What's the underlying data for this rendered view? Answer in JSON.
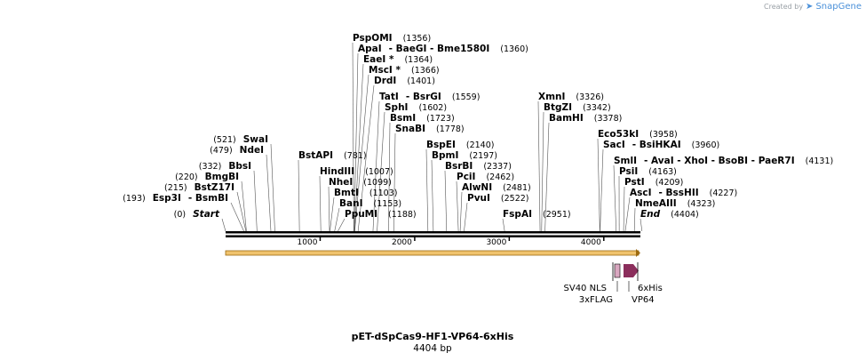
{
  "credit": {
    "prefix": "Created by",
    "brand": "SnapGene"
  },
  "map": {
    "name": "pET-dSpCas9-HF1-VP64-6xHis",
    "length_label": "4404 bp",
    "length_bp": 4404,
    "ruler_ticks": [
      "1000",
      "2000",
      "3000",
      "4000"
    ],
    "colors": {
      "orf": "#f0c36d",
      "orf_outline": "#9c6a10",
      "feature": "#8b2e5c",
      "feature_light": "#d9a7c0",
      "line": "#000000"
    }
  },
  "sites": [
    {
      "id": "start",
      "left": "(0)",
      "name": "Start",
      "right": "",
      "italic": true,
      "bp": 0
    },
    {
      "id": "esp3i",
      "left": "(193)",
      "name": "Esp3I",
      "right": "- BsmBI",
      "bp": 193
    },
    {
      "id": "bstz17i",
      "left": "(215)",
      "name": "BstZ17I",
      "right": "",
      "bp": 215
    },
    {
      "id": "bmgbi",
      "left": "(220)",
      "name": "BmgBI",
      "right": "",
      "bp": 220
    },
    {
      "id": "bbsi",
      "left": "(332)",
      "name": "BbsI",
      "right": "",
      "bp": 332
    },
    {
      "id": "ndei",
      "left": "(479)",
      "name": "NdeI",
      "right": "",
      "bp": 479
    },
    {
      "id": "swai",
      "left": "(521)",
      "name": "SwaI",
      "right": "",
      "bp": 521
    },
    {
      "id": "bstapi",
      "name": "BstAPI",
      "right": "(781)",
      "bp": 781
    },
    {
      "id": "hindiii",
      "name": "HindIII",
      "right": "(1007)",
      "bp": 1007
    },
    {
      "id": "nhei",
      "name": "NheI",
      "right": "(1099)",
      "bp": 1099
    },
    {
      "id": "bmti",
      "name": "BmtI",
      "right": "(1103)",
      "bp": 1103
    },
    {
      "id": "bani",
      "name": "BanI",
      "right": "(1153)",
      "bp": 1153
    },
    {
      "id": "ppumi",
      "name": "PpuMI",
      "right": "(1188)",
      "bp": 1188
    },
    {
      "id": "pspomi",
      "name": "PspOMI",
      "right": "(1356)",
      "bp": 1356
    },
    {
      "id": "apai",
      "name": "ApaI",
      "extra": "- BaeGI - Bme1580I",
      "right": "(1360)",
      "bp": 1360
    },
    {
      "id": "eaei",
      "name": "EaeI *",
      "right": "(1364)",
      "bp": 1364
    },
    {
      "id": "msci",
      "name": "MscI *",
      "right": "(1366)",
      "bp": 1366
    },
    {
      "id": "drdi",
      "name": "DrdI",
      "right": "(1401)",
      "bp": 1401
    },
    {
      "id": "tati",
      "name": "TatI",
      "extra": "- BsrGI",
      "right": "(1559)",
      "bp": 1559
    },
    {
      "id": "sphi",
      "name": "SphI",
      "right": "(1602)",
      "bp": 1602
    },
    {
      "id": "bsmi",
      "name": "BsmI",
      "right": "(1723)",
      "bp": 1723
    },
    {
      "id": "snabi",
      "name": "SnaBI",
      "right": "(1778)",
      "bp": 1778
    },
    {
      "id": "bspei",
      "name": "BspEI",
      "right": "(2140)",
      "bp": 2140
    },
    {
      "id": "bpmi",
      "name": "BpmI",
      "right": "(2197)",
      "bp": 2197
    },
    {
      "id": "bsrbi",
      "name": "BsrBI",
      "right": "(2337)",
      "bp": 2337
    },
    {
      "id": "pcii",
      "name": "PciI",
      "right": "(2462)",
      "bp": 2462
    },
    {
      "id": "alwni",
      "name": "AlwNI",
      "right": "(2481)",
      "bp": 2481
    },
    {
      "id": "pvui",
      "name": "PvuI",
      "right": "(2522)",
      "bp": 2522
    },
    {
      "id": "fspai",
      "name": "FspAI",
      "right": "(2951)",
      "bp": 2951
    },
    {
      "id": "xmni",
      "name": "XmnI",
      "right": "(3326)",
      "bp": 3326
    },
    {
      "id": "btgzi",
      "name": "BtgZI",
      "right": "(3342)",
      "bp": 3342
    },
    {
      "id": "bamhi",
      "name": "BamHI",
      "right": "(3378)",
      "bp": 3378
    },
    {
      "id": "eco53ki",
      "name": "Eco53kI",
      "right": "(3958)",
      "bp": 3958
    },
    {
      "id": "saci",
      "name": "SacI",
      "extra": "- BsiHKAI",
      "right": "(3960)",
      "bp": 3960
    },
    {
      "id": "smli",
      "name": "SmlI",
      "extra": "- AvaI - XhoI - BsoBI - PaeR7I",
      "right": "(4131)",
      "bp": 4131
    },
    {
      "id": "psii",
      "name": "PsiI",
      "right": "(4163)",
      "bp": 4163
    },
    {
      "id": "psti",
      "name": "PstI",
      "right": "(4209)",
      "bp": 4209
    },
    {
      "id": "asci",
      "name": "AscI",
      "extra": "- BssHII",
      "right": "(4227)",
      "bp": 4227
    },
    {
      "id": "nmeaiii",
      "name": "NmeAIII",
      "right": "(4323)",
      "bp": 4323
    },
    {
      "id": "end",
      "name": "End",
      "right": "(4404)",
      "italic": true,
      "bp": 4404
    }
  ],
  "features": [
    {
      "id": "sv40nls",
      "label": "SV40 NLS"
    },
    {
      "id": "flag",
      "label": "3xFLAG"
    },
    {
      "id": "his",
      "label": "6xHis"
    },
    {
      "id": "vp64",
      "label": "VP64"
    }
  ]
}
